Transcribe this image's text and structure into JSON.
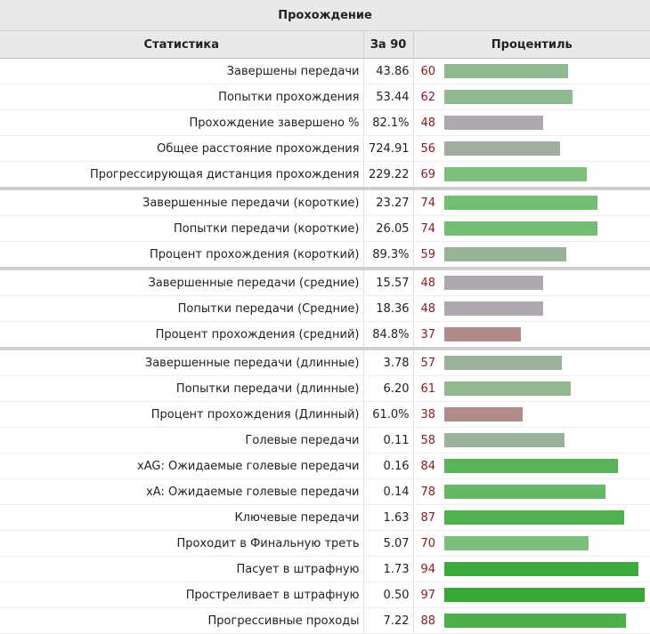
{
  "table": {
    "title": "Прохождение",
    "headers": {
      "stat": "Статистика",
      "per90": "За 90",
      "percentile": "Процентиль"
    },
    "groups": [
      [
        {
          "stat": "Завершены передачи",
          "per90": "43.86",
          "percentile": 60,
          "color": "#92ba92"
        },
        {
          "stat": "Попытки прохождения",
          "per90": "53.44",
          "percentile": 62,
          "color": "#8fba8f"
        },
        {
          "stat": "Прохождение завершено %",
          "per90": "82.1%",
          "percentile": 48,
          "color": "#ada8ad"
        },
        {
          "stat": "Общее расстояние прохождения",
          "per90": "724.91",
          "percentile": 56,
          "color": "#9fae9f"
        },
        {
          "stat": "Прогрессирующая дистанция прохождения",
          "per90": "229.22",
          "percentile": 69,
          "color": "#7dbf7d"
        }
      ],
      [
        {
          "stat": "Завершенные передачи (короткие)",
          "per90": "23.27",
          "percentile": 74,
          "color": "#74bd74"
        },
        {
          "stat": "Попытки передачи (короткие)",
          "per90": "26.05",
          "percentile": 74,
          "color": "#74bd74"
        },
        {
          "stat": "Процент прохождения (короткий)",
          "per90": "89.3%",
          "percentile": 59,
          "color": "#97b497"
        }
      ],
      [
        {
          "stat": "Завершенные передачи (средние)",
          "per90": "15.57",
          "percentile": 48,
          "color": "#ada8ad"
        },
        {
          "stat": "Попытки передачи (Средние)",
          "per90": "18.36",
          "percentile": 48,
          "color": "#ada8ad"
        },
        {
          "stat": "Процент прохождения (средний)",
          "per90": "84.8%",
          "percentile": 37,
          "color": "#b08a8a"
        }
      ],
      [
        {
          "stat": "Завершенные передачи (длинные)",
          "per90": "3.78",
          "percentile": 57,
          "color": "#9db19d"
        },
        {
          "stat": "Попытки передачи (длинные)",
          "per90": "6.20",
          "percentile": 61,
          "color": "#91b891"
        },
        {
          "stat": "Процент прохождения (Длинный)",
          "per90": "61.0%",
          "percentile": 38,
          "color": "#b18a8a"
        },
        {
          "stat": "Голевые передачи",
          "per90": "0.11",
          "percentile": 58,
          "color": "#9ab39a"
        },
        {
          "stat": "xAG: Ожидаемые голевые передачи",
          "per90": "0.16",
          "percentile": 84,
          "color": "#58b458"
        },
        {
          "stat": "xA: Ожидаемые голевые передачи",
          "per90": "0.14",
          "percentile": 78,
          "color": "#66b866"
        },
        {
          "stat": "Ключевые передачи",
          "per90": "1.63",
          "percentile": 87,
          "color": "#4fb04f"
        },
        {
          "stat": "Проходит в Финальную треть",
          "per90": "5.07",
          "percentile": 70,
          "color": "#7bbf7b"
        },
        {
          "stat": "Пасует в штрафную",
          "per90": "1.73",
          "percentile": 94,
          "color": "#3caa3c"
        },
        {
          "stat": "Простреливает в штрафную",
          "per90": "0.50",
          "percentile": 97,
          "color": "#35a835"
        },
        {
          "stat": "Прогрессивные проходы",
          "per90": "7.22",
          "percentile": 88,
          "color": "#4db04d"
        }
      ]
    ]
  }
}
